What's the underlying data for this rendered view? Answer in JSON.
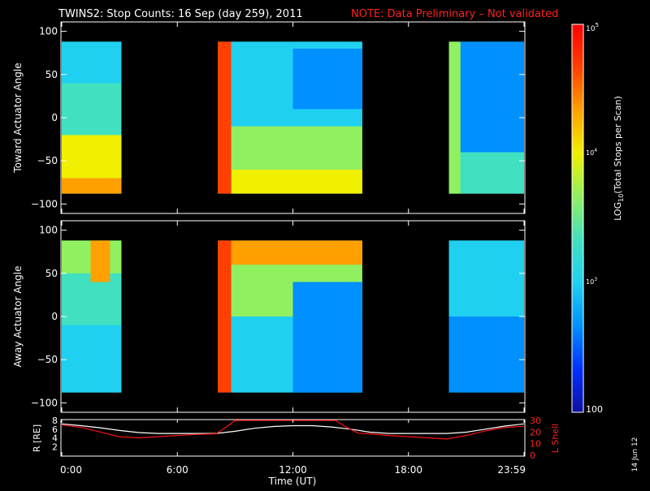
{
  "title": {
    "main": "TWINS2: Stop Counts: 16 Sep (day 259), 2011",
    "note": "NOTE: Data Preliminary – Not validated",
    "note_color": "#ff2020"
  },
  "stamp": "14 Jun 12",
  "colorbar": {
    "label": "LOG10(Total Stops per Scan)",
    "label_main": "LOG",
    "label_sub": "10",
    "label_rest": "(Total Stops per Scan)",
    "max_label_base": "10",
    "max_label_exp": "5",
    "mid_label_base": "10",
    "mid_label_exp": "4",
    "low_label_base": "10",
    "low_label_exp": "3",
    "min_label": "100",
    "range_log10": [
      2,
      5
    ],
    "colors": [
      "#1010a0",
      "#0030ff",
      "#0090ff",
      "#20d0f0",
      "#40e0c0",
      "#90f060",
      "#f0f000",
      "#ffa000",
      "#ff4000",
      "#ff0000"
    ]
  },
  "x_axis": {
    "label": "Time (UT)",
    "ticks": [
      "0:00",
      "6:00",
      "12:00",
      "18:00",
      "23:59"
    ],
    "range_hours": [
      0,
      24
    ]
  },
  "chart_data": [
    {
      "type": "heatmap",
      "ylabel": "Toward Actuator Angle",
      "ylim": [
        -110,
        110
      ],
      "yticks": [
        "100",
        "50",
        "0",
        "−50",
        "−100"
      ],
      "data_ylim": [
        -88,
        88
      ],
      "segments_hours": [
        [
          0.0,
          3.1
        ],
        [
          8.1,
          15.6
        ],
        [
          20.1,
          24.0
        ]
      ],
      "bands": [
        {
          "x": [
            0.0,
            3.1
          ],
          "y": [
            -88,
            -70
          ],
          "log10": 4.3
        },
        {
          "x": [
            0.0,
            3.1
          ],
          "y": [
            -70,
            -20
          ],
          "log10": 3.9
        },
        {
          "x": [
            0.0,
            3.1
          ],
          "y": [
            -20,
            40
          ],
          "log10": 3.4
        },
        {
          "x": [
            0.0,
            3.1
          ],
          "y": [
            40,
            88
          ],
          "log10": 3.1
        },
        {
          "x": [
            8.1,
            8.8
          ],
          "y": [
            -88,
            88
          ],
          "log10": 4.8
        },
        {
          "x": [
            8.8,
            15.6
          ],
          "y": [
            -88,
            -60
          ],
          "log10": 4.1
        },
        {
          "x": [
            8.8,
            15.6
          ],
          "y": [
            -60,
            -10
          ],
          "log10": 3.7
        },
        {
          "x": [
            8.8,
            15.6
          ],
          "y": [
            -10,
            88
          ],
          "log10": 3.0
        },
        {
          "x": [
            12.0,
            15.6
          ],
          "y": [
            10,
            80
          ],
          "log10": 2.5
        },
        {
          "x": [
            20.1,
            20.7
          ],
          "y": [
            -88,
            88
          ],
          "log10": 3.8
        },
        {
          "x": [
            20.7,
            24.0
          ],
          "y": [
            -88,
            -40
          ],
          "log10": 3.2
        },
        {
          "x": [
            20.7,
            24.0
          ],
          "y": [
            -40,
            88
          ],
          "log10": 2.7
        }
      ]
    },
    {
      "type": "heatmap",
      "ylabel": "Away Actuator Angle",
      "ylim": [
        -110,
        110
      ],
      "yticks": [
        "100",
        "50",
        "0",
        "−50",
        "−100"
      ],
      "data_ylim": [
        -88,
        88
      ],
      "segments_hours": [
        [
          0.0,
          3.1
        ],
        [
          8.1,
          15.6
        ],
        [
          20.1,
          24.0
        ]
      ],
      "bands": [
        {
          "x": [
            0.0,
            3.1
          ],
          "y": [
            -88,
            -10
          ],
          "log10": 3.0
        },
        {
          "x": [
            0.0,
            3.1
          ],
          "y": [
            -10,
            50
          ],
          "log10": 3.3
        },
        {
          "x": [
            0.0,
            3.1
          ],
          "y": [
            50,
            88
          ],
          "log10": 3.6
        },
        {
          "x": [
            1.5,
            2.5
          ],
          "y": [
            40,
            88
          ],
          "log10": 4.4
        },
        {
          "x": [
            8.1,
            8.8
          ],
          "y": [
            -88,
            88
          ],
          "log10": 4.7
        },
        {
          "x": [
            8.8,
            15.6
          ],
          "y": [
            -88,
            0
          ],
          "log10": 3.1
        },
        {
          "x": [
            8.8,
            15.6
          ],
          "y": [
            0,
            60
          ],
          "log10": 3.5
        },
        {
          "x": [
            8.8,
            15.6
          ],
          "y": [
            60,
            88
          ],
          "log10": 4.2
        },
        {
          "x": [
            12.0,
            15.6
          ],
          "y": [
            -88,
            40
          ],
          "log10": 2.7
        },
        {
          "x": [
            20.1,
            24.0
          ],
          "y": [
            -88,
            0
          ],
          "log10": 2.6
        },
        {
          "x": [
            20.1,
            24.0
          ],
          "y": [
            0,
            88
          ],
          "log10": 3.0
        }
      ]
    },
    {
      "type": "line",
      "ylabel_left": "R [RE]",
      "ylabel_right": "L Shell",
      "yticks_left": [
        "8",
        "6",
        "4",
        "2"
      ],
      "yticks_right": [
        "30",
        "20",
        "10",
        "0"
      ],
      "ylim_left": [
        0,
        8
      ],
      "ylim_right": [
        0,
        30
      ],
      "series": [
        {
          "color": "#ffffff",
          "axis": "left",
          "x": [
            0,
            1,
            2,
            3,
            4,
            5,
            6,
            7,
            8,
            9,
            10,
            11,
            12,
            13,
            14,
            15,
            16,
            17,
            18,
            19,
            20,
            21,
            22,
            23,
            24
          ],
          "y": [
            7.2,
            6.8,
            6.3,
            5.7,
            5.2,
            5.0,
            5.0,
            5.0,
            5.0,
            5.5,
            6.2,
            6.6,
            6.8,
            6.8,
            6.5,
            6.0,
            5.3,
            5.0,
            5.0,
            5.0,
            5.0,
            5.3,
            6.0,
            6.7,
            7.2
          ]
        },
        {
          "color": "#ff1010",
          "axis": "right",
          "x": [
            0,
            1,
            2,
            3,
            4,
            5,
            6,
            7,
            8,
            8.6,
            9.0,
            14.2,
            14.8,
            15.4,
            16,
            17,
            18,
            19,
            20,
            21,
            22,
            23,
            24
          ],
          "y": [
            26,
            24,
            20,
            16,
            15,
            16,
            17,
            18,
            18.5,
            25,
            30,
            30,
            24,
            19,
            18.5,
            17,
            16,
            15,
            14,
            17,
            21,
            24,
            25
          ]
        }
      ]
    }
  ]
}
